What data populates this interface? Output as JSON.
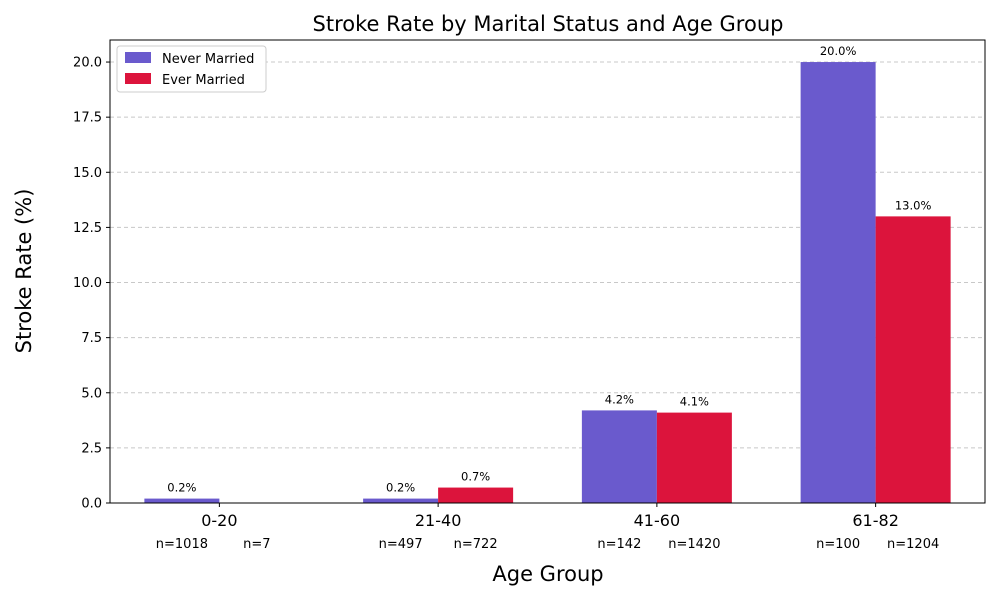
{
  "chart_data": {
    "type": "bar",
    "title": "Stroke Rate by Marital Status and Age Group",
    "xlabel": "Age Group",
    "ylabel": "Stroke Rate (%)",
    "ylim": [
      0,
      21
    ],
    "yticks": [
      0.0,
      2.5,
      5.0,
      7.5,
      10.0,
      12.5,
      15.0,
      17.5,
      20.0
    ],
    "ytick_labels": [
      "0.0",
      "2.5",
      "5.0",
      "7.5",
      "10.0",
      "12.5",
      "15.0",
      "17.5",
      "20.0"
    ],
    "grid": "y-dashed",
    "legend_position": "top-left",
    "categories": [
      "0-20",
      "21-40",
      "41-60",
      "61-82"
    ],
    "series": [
      {
        "name": "Never Married",
        "color": "#6a5acd",
        "values": [
          0.2,
          0.2,
          4.2,
          20.0
        ],
        "value_labels": [
          "0.2%",
          "0.2%",
          "4.2%",
          "20.0%"
        ],
        "counts": [
          "n=1018",
          "n=497",
          "n=142",
          "n=100"
        ]
      },
      {
        "name": "Ever Married",
        "color": "#dc143c",
        "values": [
          0.0,
          0.7,
          4.1,
          13.0
        ],
        "value_labels": [
          "",
          "0.7%",
          "4.1%",
          "13.0%"
        ],
        "counts": [
          "n=7",
          "n=722",
          "n=1420",
          "n=1204"
        ]
      }
    ]
  }
}
